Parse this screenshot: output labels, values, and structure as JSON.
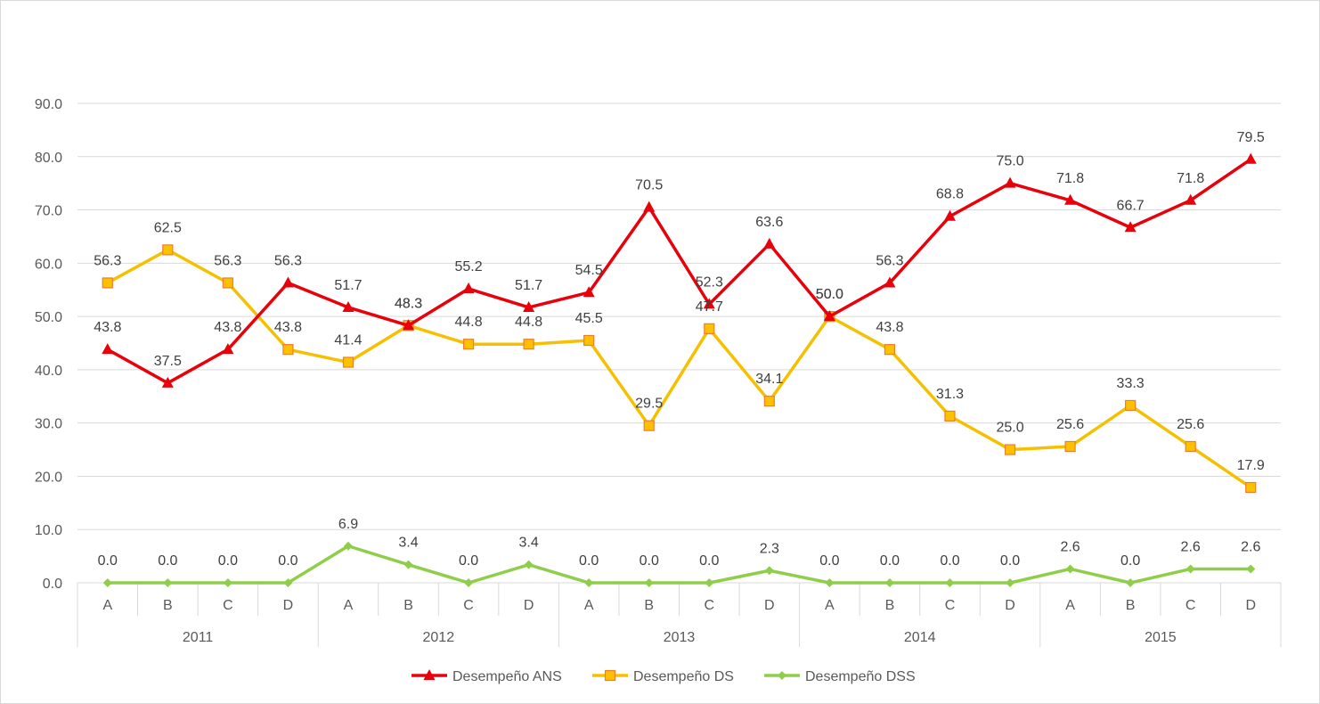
{
  "chart_data": {
    "type": "line",
    "title": "",
    "xlabel": "",
    "ylabel": "",
    "ylim": [
      0,
      90
    ],
    "yticks": [
      "0.0",
      "10.0",
      "20.0",
      "30.0",
      "40.0",
      "50.0",
      "60.0",
      "70.0",
      "80.0",
      "90.0"
    ],
    "categories": [
      "A",
      "B",
      "C",
      "D",
      "A",
      "B",
      "C",
      "D",
      "A",
      "B",
      "C",
      "D",
      "A",
      "B",
      "C",
      "D",
      "A",
      "B",
      "C",
      "D"
    ],
    "groups": [
      "2011",
      "2012",
      "2013",
      "2014",
      "2015"
    ],
    "legend_position": "bottom",
    "series": [
      {
        "name": "Desempeño ANS",
        "color": "#e8000b",
        "marker": "triangle",
        "values": [
          43.8,
          37.5,
          43.8,
          56.3,
          51.7,
          48.3,
          55.2,
          51.7,
          54.5,
          70.5,
          52.3,
          63.6,
          50.0,
          56.3,
          68.8,
          75.0,
          71.8,
          66.7,
          71.8,
          79.5
        ],
        "labels": [
          "43.8",
          "37.5",
          "43.8",
          "56.3",
          "51.7",
          "48.3",
          "55.2",
          "51.7",
          "54.5",
          "70.5",
          "52.3",
          "63.6",
          "50.0",
          "56.3",
          "68.8",
          "75.0",
          "71.8",
          "66.7",
          "71.8",
          "79.5"
        ]
      },
      {
        "name": "Desempeño DS",
        "color": "#f5c000",
        "marker": "square",
        "values": [
          56.3,
          62.5,
          56.3,
          43.8,
          41.4,
          48.3,
          44.8,
          44.8,
          45.5,
          29.5,
          47.7,
          34.1,
          50.0,
          43.8,
          31.3,
          25.0,
          25.6,
          33.3,
          25.6,
          17.9
        ],
        "labels": [
          "56.3",
          "62.5",
          "56.3",
          "43.8",
          "41.4",
          "48.3",
          "44.8",
          "44.8",
          "45.5",
          "29.5",
          "47.7",
          "34.1",
          "50.0",
          "43.8",
          "31.3",
          "25.0",
          "25.6",
          "33.3",
          "25.6",
          "17.9"
        ]
      },
      {
        "name": "Desempeño DSS",
        "color": "#8fce4a",
        "marker": "diamond",
        "values": [
          0.0,
          0.0,
          0.0,
          0.0,
          6.9,
          3.4,
          0.0,
          3.4,
          0.0,
          0.0,
          0.0,
          2.3,
          0.0,
          0.0,
          0.0,
          0.0,
          2.6,
          0.0,
          2.6,
          2.6
        ],
        "labels": [
          "0.0",
          "0.0",
          "0.0",
          "0.0",
          "6.9",
          "3.4",
          "0.0",
          "3.4",
          "0.0",
          "0.0",
          "0.0",
          "2.3",
          "0.0",
          "0.0",
          "0.0",
          "0.0",
          "2.6",
          "0.0",
          "2.6",
          "2.6"
        ]
      }
    ]
  }
}
